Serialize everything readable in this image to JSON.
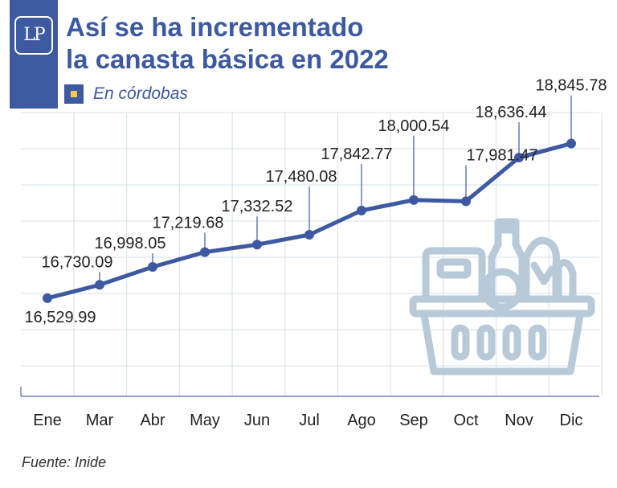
{
  "logo_text": "LP",
  "title_lines": [
    "Así se ha incrementado",
    "la canasta básica en 2022"
  ],
  "legend": "En córdobas",
  "source": "Fuente: Inide",
  "colors": {
    "brand": "#3d59a1",
    "accent": "#f2c94c",
    "grid": "#d6e0ea",
    "icon": "#b8c9d8"
  },
  "chart_data": {
    "type": "line",
    "title": "Así se ha incrementado la canasta básica en 2022",
    "ylabel": "En córdobas",
    "xlabel": "",
    "categories": [
      "Ene",
      "Mar",
      "Abr",
      "May",
      "Jun",
      "Jul",
      "Ago",
      "Sep",
      "Oct",
      "Nov",
      "Dic"
    ],
    "values": [
      16529.99,
      16730.09,
      16998.05,
      17219.68,
      17332.52,
      17480.08,
      17842.77,
      18000.54,
      17981.47,
      18636.44,
      18845.78
    ],
    "labels": [
      "16,529.99",
      "16,730.09",
      "16,998.05",
      "17,219.68",
      "17,332.52",
      "17,480.08",
      "17,842.77",
      "18,000.54",
      "17,981.47",
      "18,636.44",
      "18,845.78"
    ],
    "ylim": [
      15060,
      19310
    ],
    "grid": true
  }
}
